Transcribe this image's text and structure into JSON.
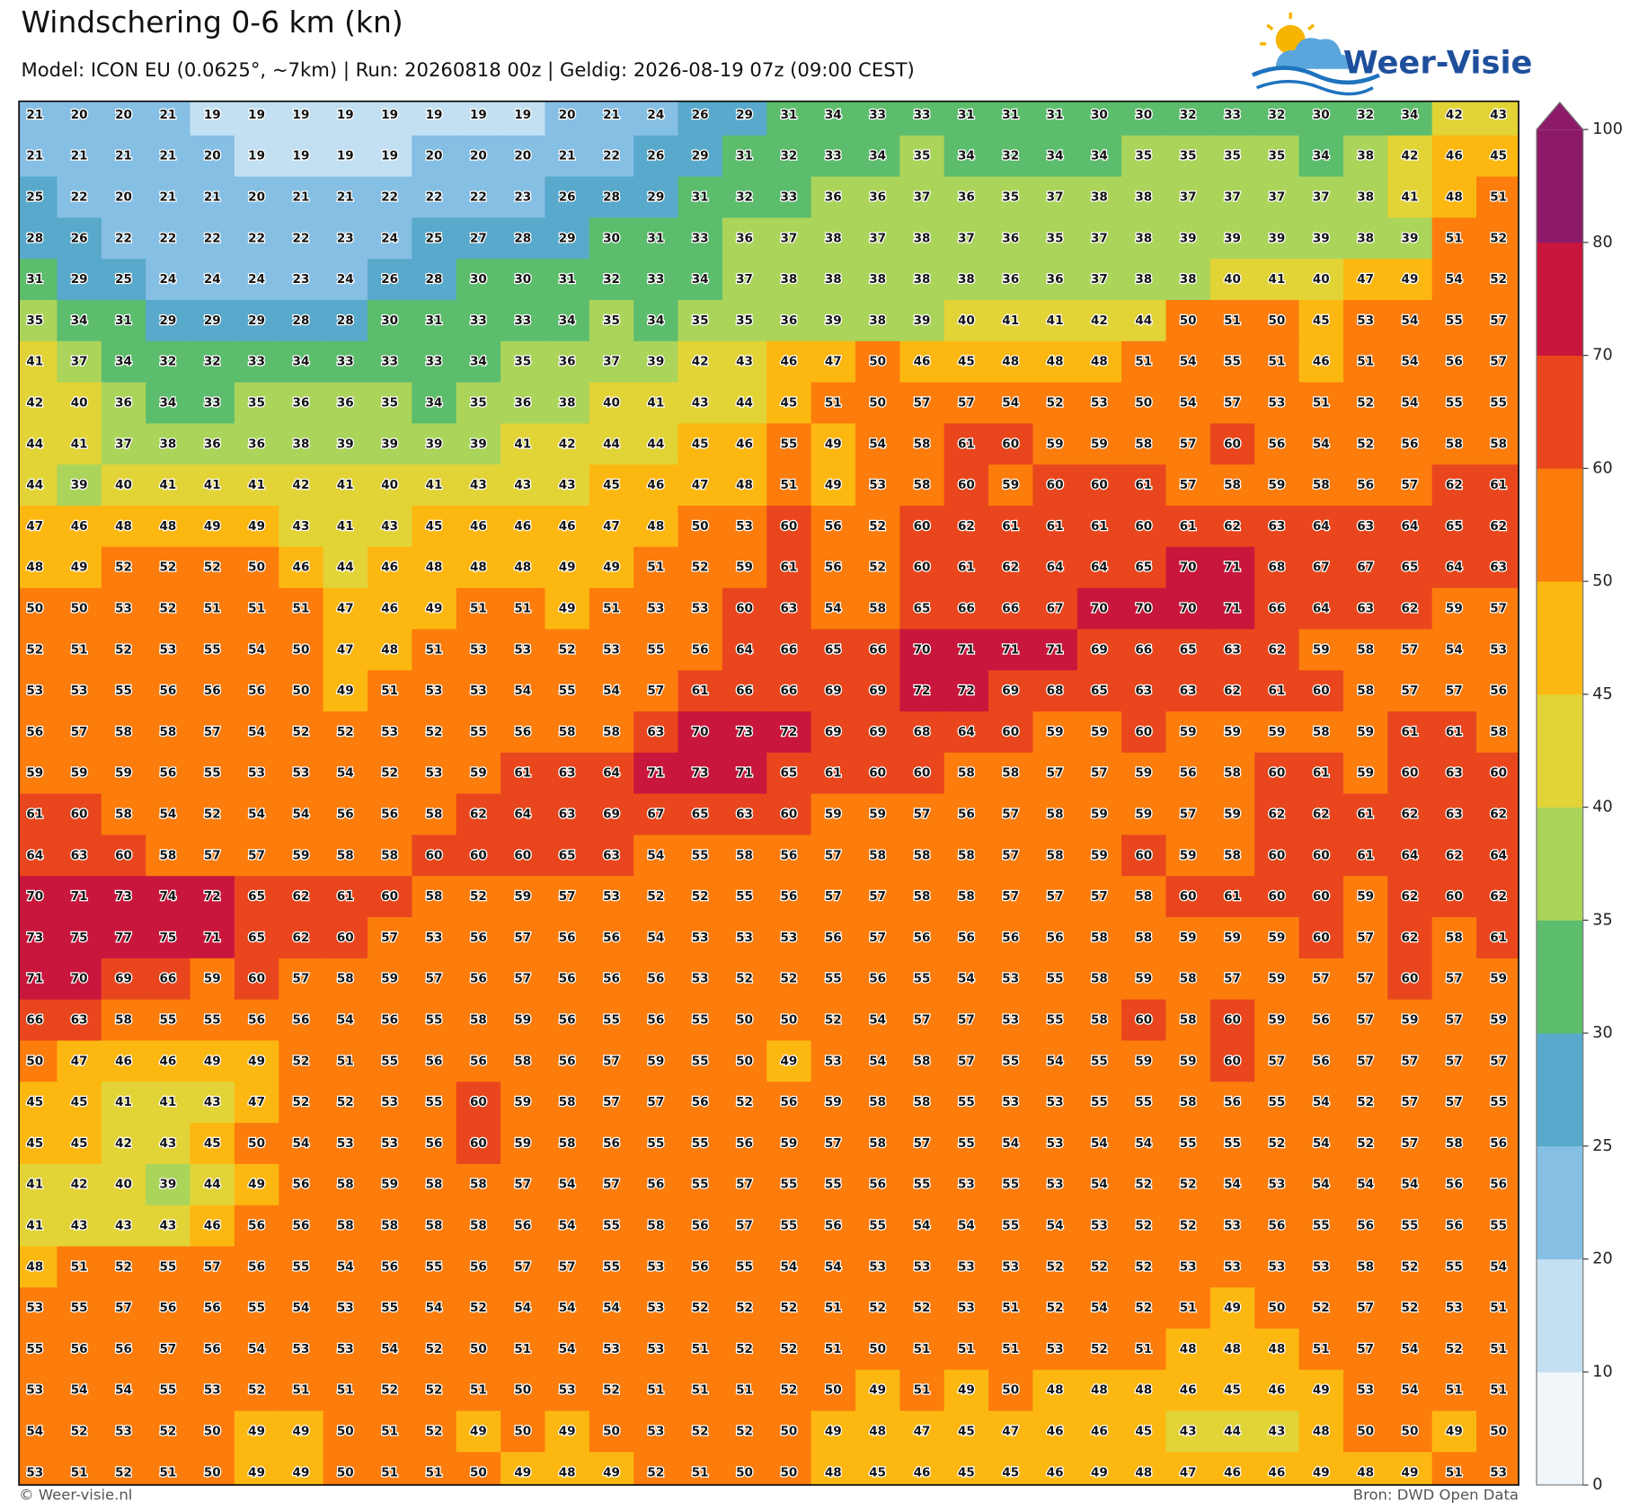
{
  "chart_data": {
    "type": "heatmap",
    "title": "Windschering 0-6 km (kn)",
    "subtitle": "Model: ICON EU (0.0625°, ~7km)  |  Run: 20260818 00z  |  Geldig: 2026-08-19 07z (09:00 CEST)",
    "brand": "Weer-Visie",
    "footer_left": "© Weer-visie.nl",
    "footer_right": "Bron: DWD Open Data",
    "colorbar": {
      "levels": [
        0,
        10,
        20,
        25,
        30,
        35,
        40,
        45,
        50,
        60,
        70,
        80,
        100
      ],
      "colors": [
        "#f1f6fb",
        "#c3e0f2",
        "#86bfe4",
        "#58a9cb",
        "#5cbd6d",
        "#abd45a",
        "#e2d337",
        "#fcb811",
        "#fc7c0c",
        "#e9461d",
        "#c9163c",
        "#8d1a69"
      ],
      "extend": "max"
    },
    "values": [
      [
        21,
        20,
        20,
        21,
        19,
        19,
        19,
        19,
        19,
        19,
        19,
        19,
        20,
        21,
        24,
        26,
        29,
        31,
        34,
        33,
        33,
        31,
        31,
        31,
        30,
        30,
        32,
        33,
        32,
        30,
        32,
        34,
        42,
        43
      ],
      [
        21,
        21,
        21,
        21,
        20,
        19,
        19,
        19,
        19,
        20,
        20,
        20,
        21,
        22,
        26,
        29,
        31,
        32,
        33,
        34,
        35,
        34,
        32,
        34,
        34,
        35,
        35,
        35,
        35,
        34,
        38,
        42,
        46,
        45
      ],
      [
        25,
        22,
        20,
        21,
        21,
        20,
        21,
        21,
        22,
        22,
        22,
        23,
        26,
        28,
        29,
        31,
        32,
        33,
        36,
        36,
        37,
        36,
        35,
        37,
        38,
        38,
        37,
        37,
        37,
        37,
        38,
        41,
        48,
        51
      ],
      [
        28,
        26,
        22,
        22,
        22,
        22,
        22,
        23,
        24,
        25,
        27,
        28,
        29,
        30,
        31,
        33,
        36,
        37,
        38,
        37,
        38,
        37,
        36,
        35,
        37,
        38,
        39,
        39,
        39,
        39,
        38,
        39,
        51,
        52
      ],
      [
        31,
        29,
        25,
        24,
        24,
        24,
        23,
        24,
        26,
        28,
        30,
        30,
        31,
        32,
        33,
        34,
        37,
        38,
        38,
        38,
        38,
        38,
        36,
        36,
        37,
        38,
        38,
        40,
        41,
        40,
        47,
        49,
        54,
        52
      ],
      [
        35,
        34,
        31,
        29,
        29,
        29,
        28,
        28,
        30,
        31,
        33,
        33,
        34,
        35,
        34,
        35,
        35,
        36,
        39,
        38,
        39,
        40,
        41,
        41,
        42,
        44,
        50,
        51,
        50,
        45,
        53,
        54,
        55,
        57
      ],
      [
        41,
        37,
        34,
        32,
        32,
        33,
        34,
        33,
        33,
        33,
        34,
        35,
        36,
        37,
        39,
        42,
        43,
        46,
        47,
        50,
        46,
        45,
        48,
        48,
        48,
        51,
        54,
        55,
        51,
        46,
        51,
        54,
        56,
        57
      ],
      [
        42,
        40,
        36,
        34,
        33,
        35,
        36,
        36,
        35,
        34,
        35,
        36,
        38,
        40,
        41,
        43,
        44,
        45,
        51,
        50,
        57,
        57,
        54,
        52,
        53,
        50,
        54,
        57,
        53,
        51,
        52,
        54,
        55,
        55
      ],
      [
        44,
        41,
        37,
        38,
        36,
        36,
        38,
        39,
        39,
        39,
        39,
        41,
        42,
        44,
        44,
        45,
        46,
        55,
        49,
        54,
        58,
        61,
        60,
        59,
        59,
        58,
        57,
        60,
        56,
        54,
        52,
        56,
        58,
        58
      ],
      [
        44,
        39,
        40,
        41,
        41,
        41,
        42,
        41,
        40,
        41,
        43,
        43,
        43,
        45,
        46,
        47,
        48,
        51,
        49,
        53,
        58,
        60,
        59,
        60,
        60,
        61,
        57,
        58,
        59,
        58,
        56,
        57,
        62,
        61
      ],
      [
        47,
        46,
        48,
        48,
        49,
        49,
        43,
        41,
        43,
        45,
        46,
        46,
        46,
        47,
        48,
        50,
        53,
        60,
        56,
        52,
        60,
        62,
        61,
        61,
        61,
        60,
        61,
        62,
        63,
        64,
        63,
        64,
        65,
        62
      ],
      [
        48,
        49,
        52,
        52,
        52,
        50,
        46,
        44,
        46,
        48,
        48,
        48,
        49,
        49,
        51,
        52,
        59,
        61,
        56,
        52,
        60,
        61,
        62,
        64,
        64,
        65,
        70,
        71,
        68,
        67,
        67,
        65,
        64,
        63
      ],
      [
        50,
        50,
        53,
        52,
        51,
        51,
        51,
        47,
        46,
        49,
        51,
        51,
        49,
        51,
        53,
        53,
        60,
        63,
        54,
        58,
        65,
        66,
        66,
        67,
        70,
        70,
        70,
        71,
        66,
        64,
        63,
        62,
        59,
        57
      ],
      [
        52,
        51,
        52,
        53,
        55,
        54,
        50,
        47,
        48,
        51,
        53,
        53,
        52,
        53,
        55,
        56,
        64,
        66,
        65,
        66,
        70,
        71,
        71,
        71,
        69,
        66,
        65,
        63,
        62,
        59,
        58,
        57,
        54,
        53
      ],
      [
        53,
        53,
        55,
        56,
        56,
        56,
        50,
        49,
        51,
        53,
        53,
        54,
        55,
        54,
        57,
        61,
        66,
        66,
        69,
        69,
        72,
        72,
        69,
        68,
        65,
        63,
        63,
        62,
        61,
        60,
        58,
        57,
        57,
        56
      ],
      [
        56,
        57,
        58,
        58,
        57,
        54,
        52,
        52,
        53,
        52,
        55,
        56,
        58,
        58,
        63,
        70,
        73,
        72,
        69,
        69,
        68,
        64,
        60,
        59,
        59,
        60,
        59,
        59,
        59,
        58,
        59,
        61,
        61,
        58
      ],
      [
        59,
        59,
        59,
        56,
        55,
        53,
        53,
        54,
        52,
        53,
        59,
        61,
        63,
        64,
        71,
        73,
        71,
        65,
        61,
        60,
        60,
        58,
        58,
        57,
        57,
        59,
        56,
        58,
        60,
        61,
        59,
        60,
        63,
        60
      ],
      [
        61,
        60,
        58,
        54,
        52,
        54,
        54,
        56,
        56,
        58,
        62,
        64,
        63,
        69,
        67,
        65,
        63,
        60,
        59,
        59,
        57,
        56,
        57,
        58,
        59,
        59,
        57,
        59,
        62,
        62,
        61,
        62,
        63,
        62
      ],
      [
        64,
        63,
        60,
        58,
        57,
        57,
        59,
        58,
        58,
        60,
        60,
        60,
        65,
        63,
        54,
        55,
        58,
        56,
        57,
        58,
        58,
        58,
        57,
        58,
        59,
        60,
        59,
        58,
        60,
        60,
        61,
        64,
        62,
        64
      ],
      [
        70,
        71,
        73,
        74,
        72,
        65,
        62,
        61,
        60,
        58,
        52,
        59,
        57,
        53,
        52,
        52,
        55,
        56,
        57,
        57,
        58,
        58,
        57,
        57,
        57,
        58,
        60,
        61,
        60,
        60,
        59,
        62,
        60,
        62
      ],
      [
        73,
        75,
        77,
        75,
        71,
        65,
        62,
        60,
        57,
        53,
        56,
        57,
        56,
        56,
        54,
        53,
        53,
        53,
        56,
        57,
        56,
        56,
        56,
        56,
        58,
        58,
        59,
        59,
        59,
        60,
        57,
        62,
        58,
        61
      ],
      [
        71,
        70,
        69,
        66,
        59,
        60,
        57,
        58,
        59,
        57,
        56,
        57,
        56,
        56,
        56,
        53,
        52,
        52,
        55,
        56,
        55,
        54,
        53,
        55,
        58,
        59,
        58,
        57,
        59,
        57,
        57,
        60,
        57,
        59
      ],
      [
        66,
        63,
        58,
        55,
        55,
        56,
        56,
        54,
        56,
        55,
        58,
        59,
        56,
        55,
        56,
        55,
        50,
        50,
        52,
        54,
        57,
        57,
        53,
        55,
        58,
        60,
        58,
        60,
        59,
        56,
        57,
        59,
        57,
        59
      ],
      [
        50,
        47,
        46,
        46,
        49,
        49,
        52,
        51,
        55,
        56,
        56,
        58,
        56,
        57,
        59,
        55,
        50,
        49,
        53,
        54,
        58,
        57,
        55,
        54,
        55,
        59,
        59,
        60,
        57,
        56,
        57,
        57,
        57,
        57
      ],
      [
        45,
        45,
        41,
        41,
        43,
        47,
        52,
        52,
        53,
        55,
        60,
        59,
        58,
        57,
        57,
        56,
        52,
        56,
        59,
        58,
        58,
        55,
        53,
        53,
        55,
        55,
        58,
        56,
        55,
        54,
        52,
        57,
        57,
        55
      ],
      [
        45,
        45,
        42,
        43,
        45,
        50,
        54,
        53,
        53,
        56,
        60,
        59,
        58,
        56,
        55,
        55,
        56,
        59,
        57,
        58,
        57,
        55,
        54,
        53,
        54,
        54,
        55,
        55,
        52,
        54,
        52,
        57,
        58,
        56
      ],
      [
        41,
        42,
        40,
        39,
        44,
        49,
        56,
        58,
        59,
        58,
        58,
        57,
        54,
        57,
        56,
        55,
        57,
        55,
        55,
        56,
        55,
        53,
        55,
        53,
        54,
        52,
        52,
        54,
        53,
        54,
        54,
        54,
        56,
        56
      ],
      [
        41,
        43,
        43,
        43,
        46,
        56,
        56,
        58,
        58,
        58,
        58,
        56,
        54,
        55,
        58,
        56,
        57,
        55,
        56,
        55,
        54,
        54,
        55,
        54,
        53,
        52,
        52,
        53,
        56,
        55,
        56,
        55,
        56,
        55
      ],
      [
        48,
        51,
        52,
        55,
        57,
        56,
        55,
        54,
        56,
        55,
        56,
        57,
        57,
        55,
        53,
        56,
        55,
        54,
        54,
        53,
        53,
        53,
        53,
        52,
        52,
        52,
        53,
        53,
        53,
        53,
        58,
        52,
        55,
        54
      ],
      [
        53,
        55,
        57,
        56,
        56,
        55,
        54,
        53,
        55,
        54,
        52,
        54,
        54,
        54,
        53,
        52,
        52,
        52,
        51,
        52,
        52,
        53,
        51,
        52,
        54,
        52,
        51,
        49,
        50,
        52,
        57,
        52,
        53,
        51
      ],
      [
        55,
        56,
        56,
        57,
        56,
        54,
        53,
        53,
        54,
        52,
        50,
        51,
        54,
        53,
        53,
        51,
        52,
        52,
        51,
        50,
        51,
        51,
        51,
        53,
        52,
        51,
        48,
        48,
        48,
        51,
        57,
        54,
        52,
        51
      ],
      [
        53,
        54,
        54,
        55,
        53,
        52,
        51,
        51,
        52,
        52,
        51,
        50,
        53,
        52,
        51,
        51,
        51,
        52,
        50,
        49,
        51,
        49,
        50,
        48,
        48,
        48,
        46,
        45,
        46,
        49,
        53,
        54,
        51,
        51
      ],
      [
        54,
        52,
        53,
        52,
        50,
        49,
        49,
        50,
        51,
        52,
        49,
        50,
        49,
        50,
        53,
        52,
        52,
        50,
        49,
        48,
        47,
        45,
        47,
        46,
        46,
        45,
        43,
        44,
        43,
        48,
        50,
        50,
        49,
        50
      ],
      [
        53,
        51,
        52,
        51,
        50,
        49,
        49,
        50,
        51,
        51,
        50,
        49,
        48,
        49,
        52,
        51,
        50,
        50,
        48,
        45,
        46,
        45,
        45,
        46,
        49,
        48,
        47,
        46,
        46,
        49,
        48,
        49,
        51,
        53
      ]
    ]
  }
}
